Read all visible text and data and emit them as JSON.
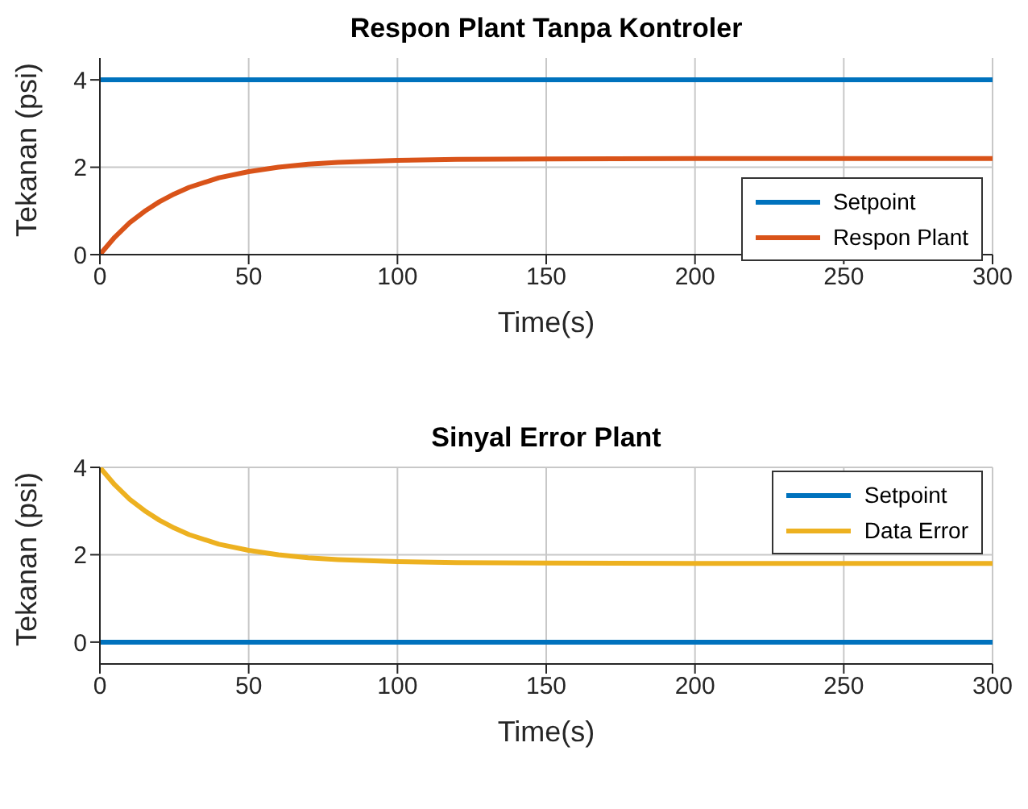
{
  "chart_data": [
    {
      "type": "line",
      "title": "Respon Plant Tanpa Kontroler",
      "xlabel": "Time(s)",
      "ylabel": "Tekanan (psi)",
      "x": [
        0,
        5,
        10,
        15,
        20,
        25,
        30,
        40,
        50,
        60,
        70,
        80,
        100,
        120,
        150,
        200,
        250,
        300
      ],
      "series": [
        {
          "name": "Setpoint",
          "color": "#0072bd",
          "values": [
            4,
            4,
            4,
            4,
            4,
            4,
            4,
            4,
            4,
            4,
            4,
            4,
            4,
            4,
            4,
            4,
            4,
            4
          ]
        },
        {
          "name": "Respon Plant",
          "color": "#d95319",
          "values": [
            0,
            0.4,
            0.73,
            0.99,
            1.21,
            1.39,
            1.54,
            1.76,
            1.9,
            2.0,
            2.07,
            2.11,
            2.16,
            2.18,
            2.19,
            2.2,
            2.2,
            2.2
          ]
        }
      ],
      "xlim": [
        0,
        300
      ],
      "xticks": [
        0,
        50,
        100,
        150,
        200,
        250,
        300
      ],
      "ylim": [
        0,
        4.5
      ],
      "yticks": [
        0,
        2,
        4
      ],
      "grid": true,
      "legend": "bottom right",
      "marker": "none"
    },
    {
      "type": "line",
      "title": "Sinyal Error Plant",
      "xlabel": "Time(s)",
      "ylabel": "Tekanan (psi)",
      "x": [
        0,
        5,
        10,
        15,
        20,
        25,
        30,
        40,
        50,
        60,
        70,
        80,
        100,
        120,
        150,
        200,
        250,
        300
      ],
      "series": [
        {
          "name": "Setpoint",
          "color": "#0072bd",
          "values": [
            0,
            0,
            0,
            0,
            0,
            0,
            0,
            0,
            0,
            0,
            0,
            0,
            0,
            0,
            0,
            0,
            0,
            0
          ]
        },
        {
          "name": "Data Error",
          "color": "#edb120",
          "values": [
            4,
            3.6,
            3.27,
            3.01,
            2.79,
            2.61,
            2.46,
            2.24,
            2.1,
            2.0,
            1.93,
            1.89,
            1.84,
            1.82,
            1.81,
            1.8,
            1.8,
            1.8
          ]
        }
      ],
      "xlim": [
        0,
        300
      ],
      "xticks": [
        0,
        50,
        100,
        150,
        200,
        250,
        300
      ],
      "ylim": [
        -0.5,
        4
      ],
      "yticks": [
        0,
        2,
        4
      ],
      "grid": true,
      "legend": "top right",
      "marker": "none"
    }
  ]
}
